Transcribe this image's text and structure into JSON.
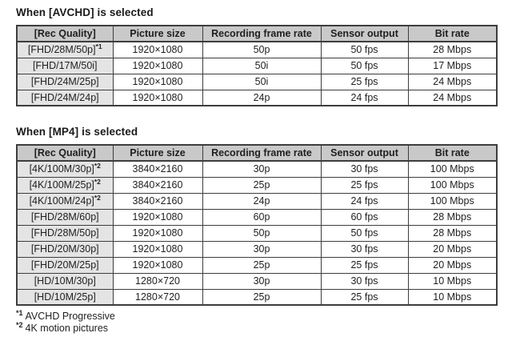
{
  "colors": {
    "header_bg": "#c9c9c9",
    "row_label_bg": "#e4e4e4",
    "border": "#3d3d3d",
    "text": "#1f1f1f",
    "page_bg": "#ffffff"
  },
  "avchd": {
    "title": "When [AVCHD] is selected",
    "headers": [
      "[Rec Quality]",
      "Picture size",
      "Recording frame rate",
      "Sensor output",
      "Bit rate"
    ],
    "rows": [
      {
        "quality": "[FHD/28M/50p]",
        "marker": "*1",
        "picture_size": "1920×1080",
        "frame_rate": "50p",
        "sensor_output": "50 fps",
        "bit_rate": "28 Mbps"
      },
      {
        "quality": "[FHD/17M/50i]",
        "picture_size": "1920×1080",
        "frame_rate": "50i",
        "sensor_output": "50 fps",
        "bit_rate": "17 Mbps"
      },
      {
        "quality": "[FHD/24M/25p]",
        "picture_size": "1920×1080",
        "frame_rate": "50i",
        "sensor_output": "25 fps",
        "bit_rate": "24 Mbps"
      },
      {
        "quality": "[FHD/24M/24p]",
        "picture_size": "1920×1080",
        "frame_rate": "24p",
        "sensor_output": "24 fps",
        "bit_rate": "24 Mbps"
      }
    ]
  },
  "mp4": {
    "title": "When [MP4] is selected",
    "headers": [
      "[Rec Quality]",
      "Picture size",
      "Recording frame rate",
      "Sensor output",
      "Bit rate"
    ],
    "rows": [
      {
        "quality": "[4K/100M/30p]",
        "marker": "*2",
        "picture_size": "3840×2160",
        "frame_rate": "30p",
        "sensor_output": "30 fps",
        "bit_rate": "100 Mbps"
      },
      {
        "quality": "[4K/100M/25p]",
        "marker": "*2",
        "picture_size": "3840×2160",
        "frame_rate": "25p",
        "sensor_output": "25 fps",
        "bit_rate": "100 Mbps"
      },
      {
        "quality": "[4K/100M/24p]",
        "marker": "*2",
        "picture_size": "3840×2160",
        "frame_rate": "24p",
        "sensor_output": "24 fps",
        "bit_rate": "100 Mbps"
      },
      {
        "quality": "[FHD/28M/60p]",
        "picture_size": "1920×1080",
        "frame_rate": "60p",
        "sensor_output": "60 fps",
        "bit_rate": "28 Mbps"
      },
      {
        "quality": "[FHD/28M/50p]",
        "picture_size": "1920×1080",
        "frame_rate": "50p",
        "sensor_output": "50 fps",
        "bit_rate": "28 Mbps"
      },
      {
        "quality": "[FHD/20M/30p]",
        "picture_size": "1920×1080",
        "frame_rate": "30p",
        "sensor_output": "30 fps",
        "bit_rate": "20 Mbps"
      },
      {
        "quality": "[FHD/20M/25p]",
        "picture_size": "1920×1080",
        "frame_rate": "25p",
        "sensor_output": "25 fps",
        "bit_rate": "20 Mbps"
      },
      {
        "quality": "[HD/10M/30p]",
        "picture_size": "1280×720",
        "frame_rate": "30p",
        "sensor_output": "30 fps",
        "bit_rate": "10 Mbps"
      },
      {
        "quality": "[HD/10M/25p]",
        "picture_size": "1280×720",
        "frame_rate": "25p",
        "sensor_output": "25 fps",
        "bit_rate": "10 Mbps"
      }
    ]
  },
  "footnotes": [
    {
      "marker": "*1",
      "text": "AVCHD Progressive"
    },
    {
      "marker": "*2",
      "text": "4K motion pictures"
    }
  ]
}
